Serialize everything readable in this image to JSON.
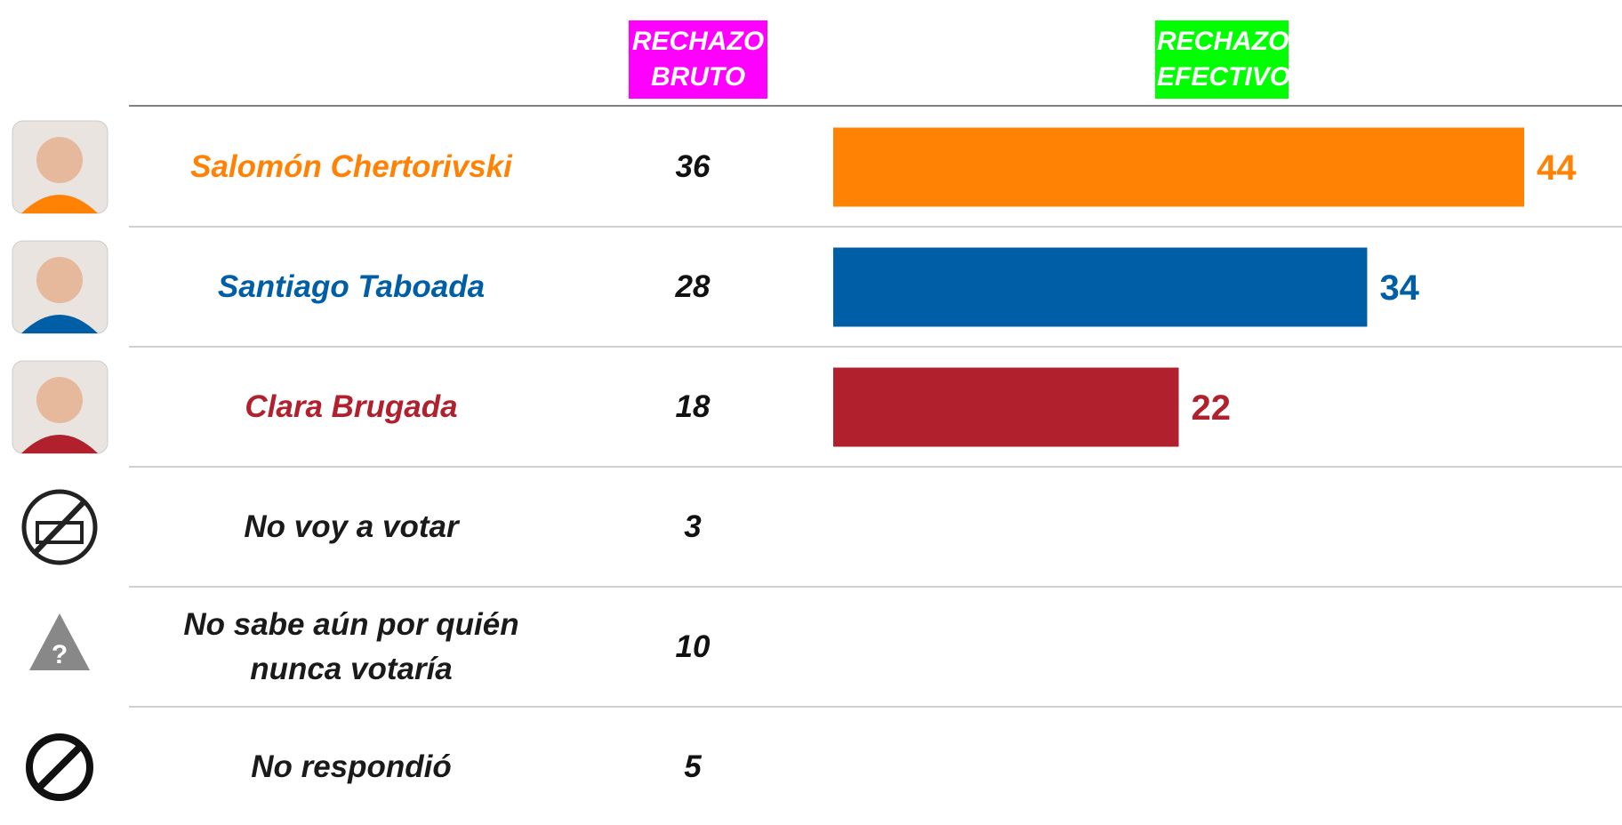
{
  "chart_data": {
    "type": "bar",
    "categories": [
      "Salomón Chertorivski",
      "Santiago Taboada",
      "Clara Brugada",
      "No voy a votar",
      "No sabe aún por quién nunca votaría",
      "No respondió"
    ],
    "category_colors": [
      "#ff8205",
      "#005ea6",
      "#b0202d",
      "#1a1a1a",
      "#1a1a1a",
      "#1a1a1a"
    ],
    "series": [
      {
        "name": "RECHAZO BRUTO",
        "color": "#ff00ff",
        "values": [
          36,
          28,
          18,
          3,
          10,
          5
        ]
      },
      {
        "name": "RECHAZO EFECTIVO",
        "color": "#00ff00",
        "values": [
          44,
          34,
          22,
          null,
          null,
          null
        ]
      }
    ]
  }
}
